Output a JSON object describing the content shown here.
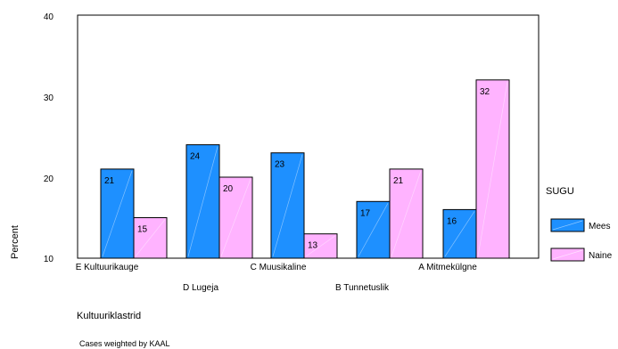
{
  "chart_data": {
    "type": "bar",
    "categories": [
      "E Kultuurikauge",
      "D Lugeja",
      "C Muusikaline",
      "B Tunnetuslik",
      "A Mitmekülgne"
    ],
    "series": [
      {
        "name": "Mees",
        "values": [
          21,
          24,
          23,
          17,
          16
        ],
        "labels": [
          "21",
          "24",
          "23",
          "17",
          "16"
        ],
        "color": "#1e90ff"
      },
      {
        "name": "Naine",
        "values": [
          15,
          20,
          13,
          21,
          32
        ],
        "labels": [
          "15",
          "20",
          "13",
          "21",
          "32"
        ],
        "color": "#ffb3ff"
      }
    ],
    "ylim": [
      10,
      40
    ],
    "yticks": [
      10,
      20,
      30,
      40
    ],
    "ytick_labels": [
      "10",
      "20",
      "30",
      "40"
    ],
    "ylabel": "Percent",
    "xlabel": "Kultuuriklastrid",
    "legend_title": "SUGU",
    "legend_position": "right",
    "grid": false,
    "footnote": "Cases weighted by KAAL",
    "colors": {
      "mees": "#1e90ff",
      "naine": "#ffb3ff",
      "bar_edge": "#000000"
    }
  }
}
